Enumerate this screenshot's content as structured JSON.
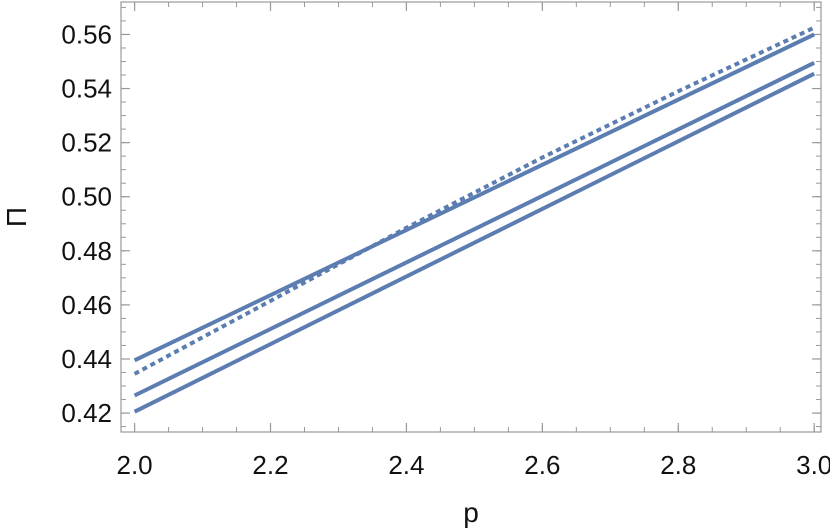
{
  "chart_data": {
    "type": "line",
    "title": "",
    "xlabel": "p",
    "ylabel": "Π",
    "xlim": [
      1.98,
      3.01
    ],
    "ylim": [
      0.413,
      0.572
    ],
    "x_ticks": [
      2.0,
      2.2,
      2.4,
      2.6,
      2.8,
      3.0
    ],
    "x_tick_labels": [
      "2.0",
      "2.2",
      "2.4",
      "2.6",
      "2.8",
      "3.0"
    ],
    "y_ticks": [
      0.42,
      0.44,
      0.46,
      0.48,
      0.5,
      0.52,
      0.54,
      0.56
    ],
    "y_tick_labels": [
      "0.42",
      "0.44",
      "0.46",
      "0.48",
      "0.50",
      "0.52",
      "0.54",
      "0.56"
    ],
    "grid": false,
    "legend": "none",
    "line_color": "#5b7db1",
    "series": [
      {
        "style": "solid",
        "x": [
          2.0,
          3.0
        ],
        "y": [
          0.4395,
          0.56
        ]
      },
      {
        "style": "solid",
        "x": [
          2.0,
          3.0
        ],
        "y": [
          0.4265,
          0.5495
        ]
      },
      {
        "style": "solid",
        "x": [
          2.0,
          3.0
        ],
        "y": [
          0.4205,
          0.5455
        ]
      },
      {
        "style": "dotted",
        "x": [
          2.0,
          2.2,
          2.4,
          2.6,
          2.8,
          3.0
        ],
        "y": [
          0.4345,
          0.4615,
          0.4885,
          0.5145,
          0.539,
          0.5625
        ]
      }
    ]
  }
}
